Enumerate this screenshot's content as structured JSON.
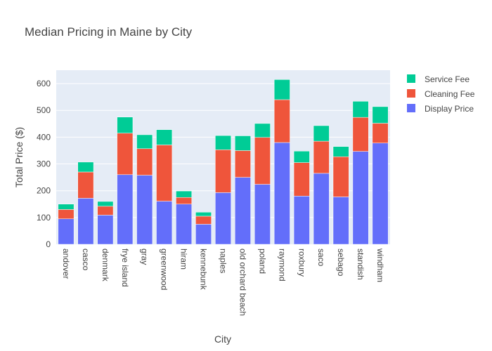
{
  "chart_data": {
    "type": "bar",
    "stacked": true,
    "title": "Median Pricing in Maine by City",
    "xlabel": "City",
    "ylabel": "Total Price ($)",
    "ylim": [
      0,
      650
    ],
    "yticks": [
      0,
      100,
      200,
      300,
      400,
      500,
      600
    ],
    "grid": true,
    "legend_position": "top-right",
    "categories": [
      "andover",
      "casco",
      "denmark",
      "frye island",
      "gray",
      "greenwood",
      "hiram",
      "kennebunk",
      "naples",
      "old orchard beach",
      "poland",
      "raymond",
      "roxbury",
      "saco",
      "sebago",
      "standish",
      "windham"
    ],
    "series": [
      {
        "name": "Display Price",
        "color": "#636efa",
        "values": [
          95,
          172,
          109,
          260,
          258,
          161,
          150,
          75,
          193,
          250,
          224,
          380,
          180,
          265,
          177,
          347,
          378
        ]
      },
      {
        "name": "Cleaning Fee",
        "color": "#ef553b",
        "values": [
          35,
          98,
          33,
          155,
          99,
          210,
          25,
          30,
          160,
          100,
          175,
          160,
          125,
          120,
          150,
          127,
          74
        ]
      },
      {
        "name": "Service Fee",
        "color": "#00cc96",
        "values": [
          20,
          37,
          18,
          60,
          52,
          57,
          24,
          15,
          53,
          55,
          52,
          75,
          43,
          58,
          38,
          60,
          62
        ]
      }
    ],
    "legend_order": [
      "Service Fee",
      "Cleaning Fee",
      "Display Price"
    ]
  }
}
